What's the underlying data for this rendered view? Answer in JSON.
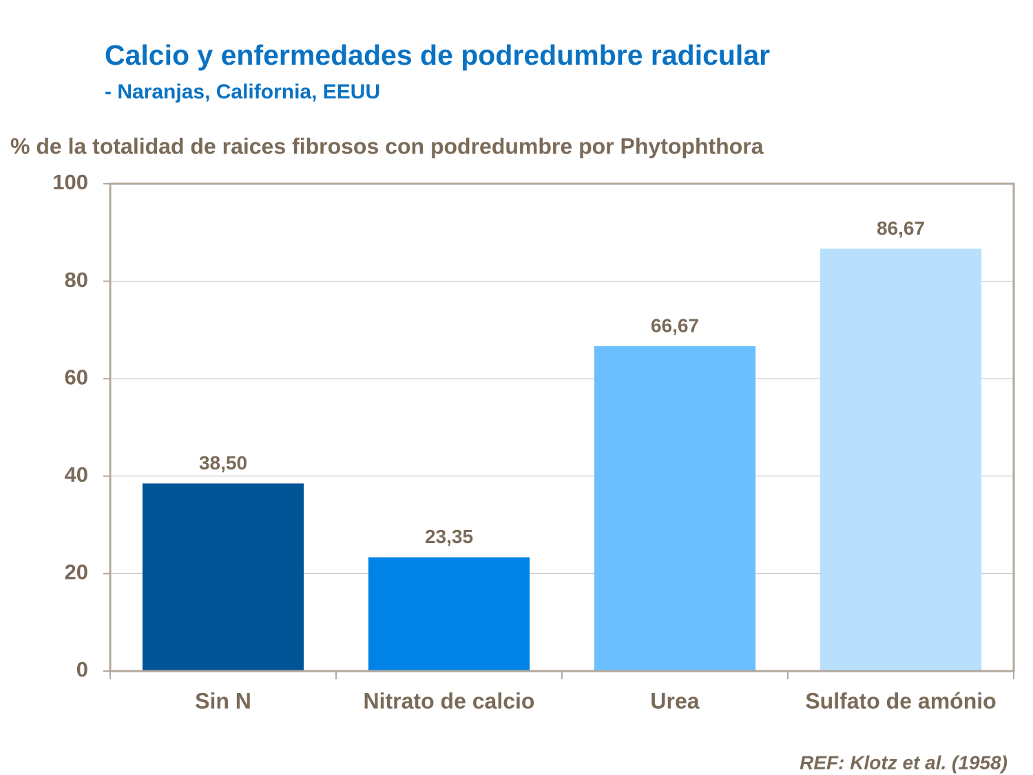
{
  "chart_data": {
    "type": "bar",
    "title": "Calcio y enfermedades de podredumbre radicular",
    "subtitle": "- Naranjas, California, EEUU",
    "y_label": "% de la totalidad de raices fibrosos con podredumbre por Phytophthora",
    "categories": [
      "Sin N",
      "Nitrato de calcio",
      "Urea",
      "Sulfato de amónio"
    ],
    "values": [
      38.5,
      23.35,
      66.67,
      86.67
    ],
    "value_labels": [
      "38,50",
      "23,35",
      "66,67",
      "86,67"
    ],
    "colors": [
      "#005596",
      "#0082e6",
      "#6bbfff",
      "#b8e0fd"
    ],
    "ylim": [
      0,
      100
    ],
    "yticks": [
      0,
      20,
      40,
      60,
      80,
      100
    ],
    "grid": true,
    "note": "REF: Klotz et al. (1958)"
  }
}
